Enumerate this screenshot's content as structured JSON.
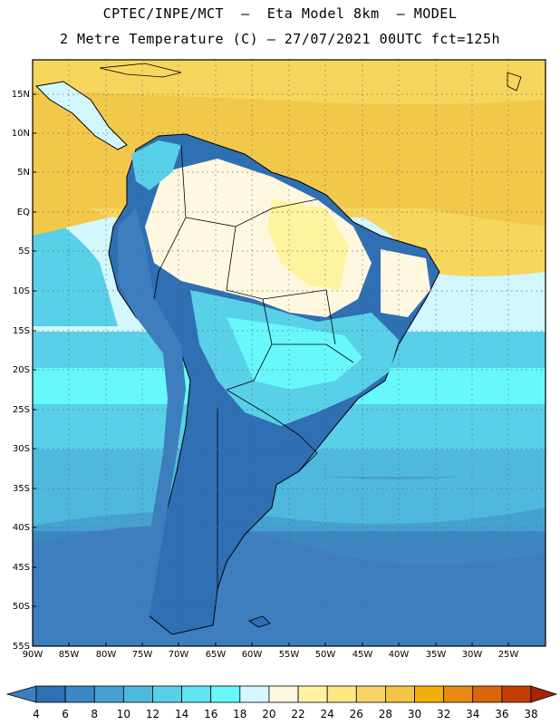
{
  "title": {
    "line1": "CPTEC/INPE/MCT  –  Eta Model 8km  – MODEL",
    "line2": "2 Metre Temperature (C) – 27/07/2021 00UTC fct=125h"
  },
  "map": {
    "lat_labels": [
      "15N",
      "10N",
      "5N",
      "EQ",
      "5S",
      "10S",
      "15S",
      "20S",
      "25S",
      "30S",
      "35S",
      "40S",
      "45S",
      "50S",
      "55S"
    ],
    "lon_labels": [
      "90W",
      "85W",
      "80W",
      "75W",
      "70W",
      "65W",
      "60W",
      "55W",
      "50W",
      "45W",
      "40W",
      "35W",
      "30W",
      "25W"
    ],
    "lat_range": [
      -55,
      19
    ],
    "lon_range": [
      -90,
      -20
    ],
    "grid": "dotted",
    "colors": {
      "ocean_warm": "#f2c84b",
      "ocean_warm2": "#f7d65d",
      "land_warm": "#fff5c0",
      "land_mid": "#cdf5ff",
      "cold": "#2f6fb3",
      "coast": "#000000"
    }
  },
  "colorbar": {
    "labels": [
      "4",
      "6",
      "8",
      "10",
      "12",
      "14",
      "16",
      "18",
      "20",
      "22",
      "24",
      "26",
      "28",
      "30",
      "32",
      "34",
      "36",
      "38"
    ],
    "colors": [
      "#3d7ebf",
      "#2f6fb3",
      "#3a88c4",
      "#46a1d2",
      "#4fb9dd",
      "#58d0e8",
      "#5fe6f2",
      "#66f8fb",
      "#d2f7ff",
      "#fff8e0",
      "#fff3a0",
      "#ffe783",
      "#f8d466",
      "#f4c443",
      "#f2ae0b",
      "#e68a12",
      "#d8660c",
      "#c23d03",
      "#a52606"
    ]
  }
}
